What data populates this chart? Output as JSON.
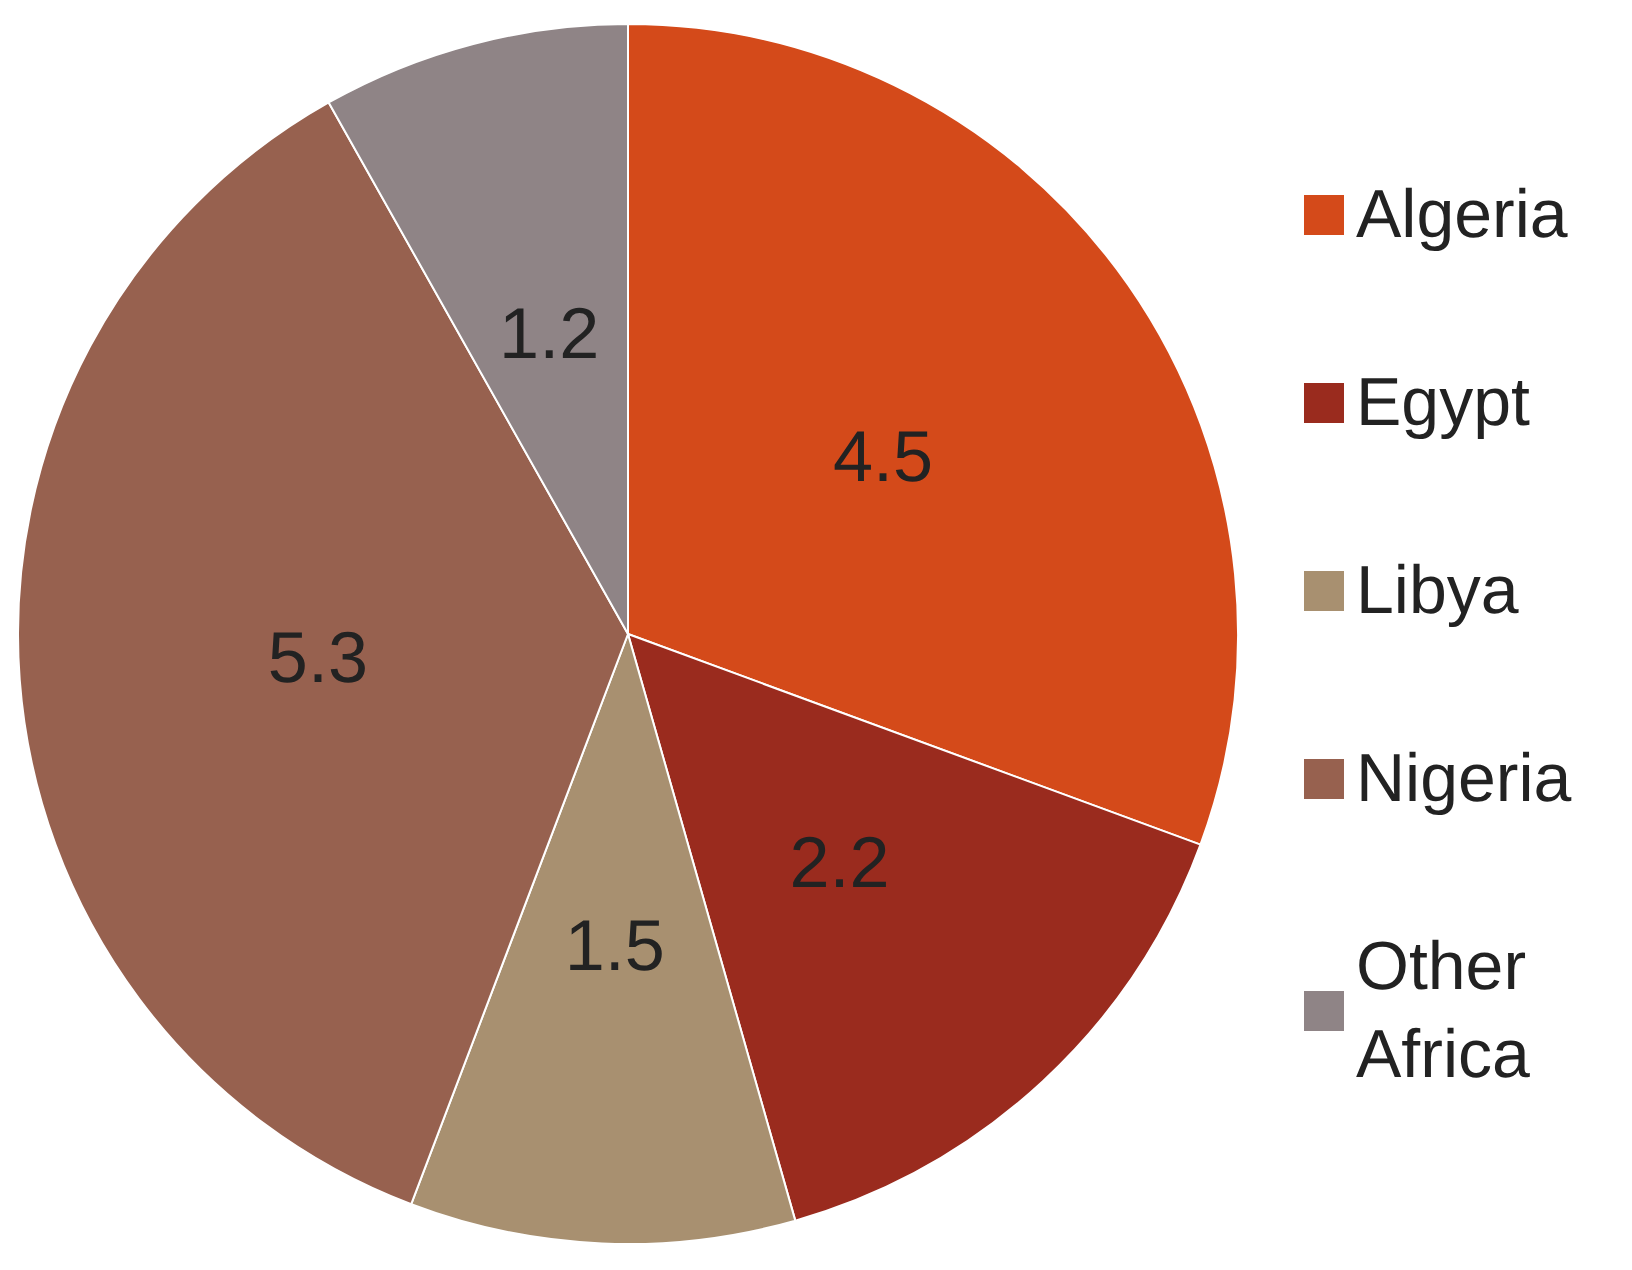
{
  "chart_data": {
    "type": "pie",
    "categories": [
      "Algeria",
      "Egypt",
      "Libya",
      "Nigeria",
      "Other Africa"
    ],
    "values": [
      4.5,
      2.2,
      1.5,
      5.3,
      1.2
    ],
    "colors": [
      "#d44a1a",
      "#9a2b1e",
      "#a89070",
      "#97614f",
      "#8f8486"
    ],
    "data_labels": true,
    "legend": "right"
  }
}
